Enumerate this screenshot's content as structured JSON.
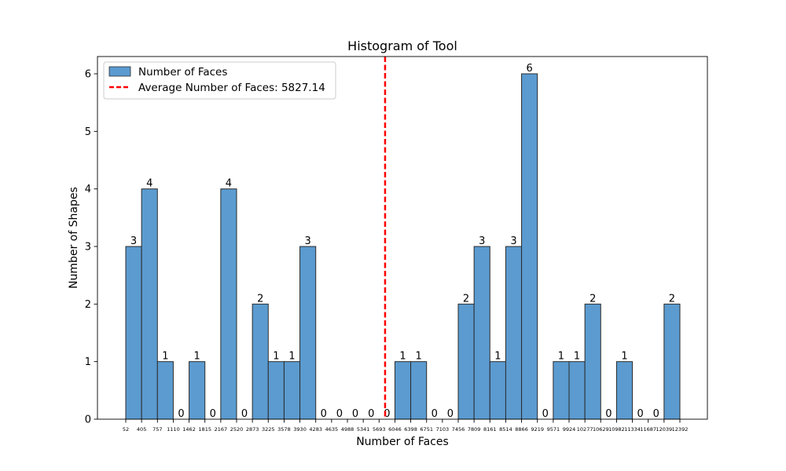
{
  "chart_data": {
    "type": "bar",
    "title": "Histogram of Tool",
    "xlabel": "Number of Faces",
    "ylabel": "Number of Shapes",
    "x_tick_labels": [
      "52",
      "405",
      "757",
      "1110",
      "1462",
      "1815",
      "2167",
      "2520",
      "2873",
      "3225",
      "3578",
      "3930",
      "4283",
      "4635",
      "4988",
      "5341",
      "5693",
      "6046",
      "6398",
      "6751",
      "7103",
      "7456",
      "7809",
      "8161",
      "8514",
      "8866",
      "9219",
      "9571",
      "9924",
      "10277",
      "10629",
      "10982",
      "11334",
      "11687",
      "12039",
      "12392"
    ],
    "bin_edges": [
      52,
      405,
      757,
      1110,
      1462,
      1815,
      2167,
      2520,
      2873,
      3225,
      3578,
      3930,
      4283,
      4635,
      4988,
      5341,
      5693,
      6046,
      6398,
      6751,
      7103,
      7456,
      7809,
      8161,
      8514,
      8866,
      9219,
      9571,
      9924,
      10277,
      10629,
      10982,
      11334,
      11687,
      12039,
      12392
    ],
    "values": [
      3,
      4,
      1,
      0,
      1,
      0,
      4,
      0,
      2,
      1,
      1,
      3,
      0,
      0,
      0,
      0,
      0,
      1,
      1,
      0,
      0,
      2,
      3,
      1,
      3,
      6,
      0,
      1,
      1,
      2,
      0,
      1,
      0,
      0,
      2
    ],
    "y_ticks": [
      0,
      1,
      2,
      3,
      4,
      5,
      6
    ],
    "ylim": [
      0,
      6.3
    ],
    "xlim": [
      52,
      12392
    ],
    "average_line": {
      "value": 5827.14,
      "color": "#ff0000",
      "style": "dashed"
    },
    "series": [
      {
        "name": "Number of Faces",
        "color": "#5b9bd0"
      }
    ],
    "legend": {
      "placement": "top-left",
      "entries": [
        "Number of Faces",
        "Average Number of Faces: 5827.14"
      ]
    },
    "grid": false
  }
}
